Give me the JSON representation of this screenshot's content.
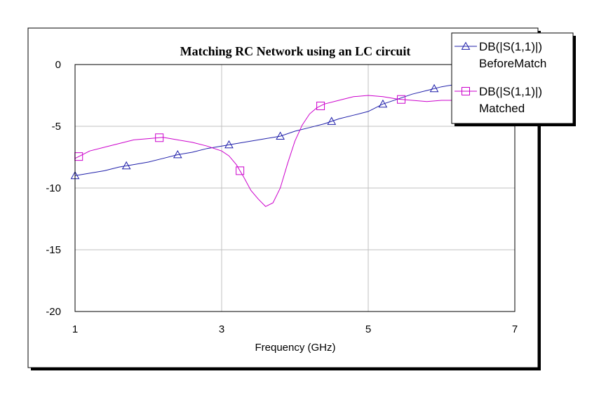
{
  "chart_data": {
    "type": "line",
    "title": "Matching RC Network using an LC circuit",
    "xlabel": "Frequency (GHz)",
    "ylabel": "",
    "xlim": [
      1,
      7
    ],
    "ylim": [
      -20,
      0
    ],
    "xticks": [
      1,
      3,
      5,
      7
    ],
    "yticks": [
      0,
      -5,
      -10,
      -15,
      -20
    ],
    "xtick_labels": [
      "1",
      "3",
      "5",
      "7"
    ],
    "ytick_labels": [
      "0",
      "-5",
      "-10",
      "-15",
      "-20"
    ],
    "grid": true,
    "legend_position": "top-right",
    "series": [
      {
        "name_lines": [
          "DB(|S(1,1)|)",
          "BeforeMatch"
        ],
        "color": "#1f1faa",
        "marker": "triangle",
        "x": [
          1.0,
          1.2,
          1.4,
          1.6,
          1.8,
          2.0,
          2.2,
          2.4,
          2.6,
          2.8,
          3.0,
          3.2,
          3.4,
          3.6,
          3.8,
          4.0,
          4.2,
          4.4,
          4.6,
          4.8,
          5.0,
          5.2,
          5.4,
          5.6,
          5.8,
          6.0,
          6.2,
          6.4,
          6.6,
          6.8,
          7.0
        ],
        "y": [
          -9.0,
          -8.8,
          -8.6,
          -8.3,
          -8.1,
          -7.9,
          -7.6,
          -7.3,
          -7.1,
          -6.8,
          -6.6,
          -6.4,
          -6.2,
          -6.0,
          -5.8,
          -5.4,
          -5.1,
          -4.8,
          -4.4,
          -4.1,
          -3.8,
          -3.2,
          -2.8,
          -2.4,
          -2.1,
          -1.8,
          -1.6,
          -1.4,
          -1.3,
          -1.1,
          -1.0
        ],
        "marker_x": [
          1.0,
          1.7,
          2.4,
          3.1,
          3.8,
          4.5,
          5.2,
          5.9
        ]
      },
      {
        "name_lines": [
          "DB(|S(1,1)|)",
          "Matched"
        ],
        "color": "#cc00cc",
        "marker": "square",
        "x": [
          1.0,
          1.2,
          1.4,
          1.6,
          1.8,
          2.0,
          2.2,
          2.4,
          2.6,
          2.8,
          3.0,
          3.1,
          3.2,
          3.3,
          3.4,
          3.5,
          3.6,
          3.7,
          3.8,
          3.9,
          4.0,
          4.1,
          4.2,
          4.3,
          4.4,
          4.6,
          4.8,
          5.0,
          5.2,
          5.4,
          5.6,
          5.8,
          6.0,
          6.2,
          6.4,
          6.6,
          6.8,
          7.0
        ],
        "y": [
          -7.6,
          -7.0,
          -6.7,
          -6.4,
          -6.1,
          -6.0,
          -5.9,
          -6.1,
          -6.3,
          -6.6,
          -7.0,
          -7.4,
          -8.1,
          -9.1,
          -10.2,
          -10.9,
          -11.5,
          -11.2,
          -10.0,
          -8.0,
          -6.2,
          -4.9,
          -4.0,
          -3.5,
          -3.2,
          -2.9,
          -2.6,
          -2.5,
          -2.6,
          -2.8,
          -2.9,
          -3.0,
          -2.9,
          -2.9,
          -2.9,
          -2.9,
          -2.9,
          -2.9
        ],
        "marker_x": [
          1.05,
          2.15,
          3.25,
          4.35,
          5.45
        ]
      }
    ]
  }
}
